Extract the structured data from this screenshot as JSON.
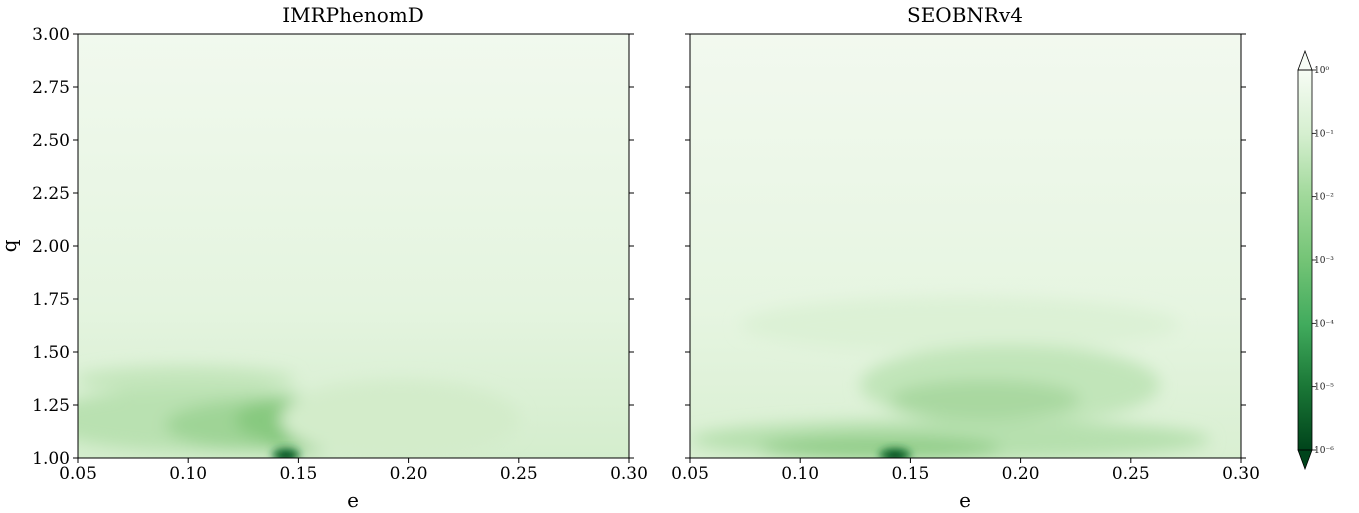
{
  "chart_data": [
    {
      "type": "heatmap",
      "title": "IMRPhenomD",
      "xlabel": "e",
      "ylabel": "q",
      "xlim": [
        0.05,
        0.3
      ],
      "ylim": [
        1.0,
        3.0
      ],
      "x_ticks": [
        "0.05",
        "0.10",
        "0.15",
        "0.20",
        "0.25",
        "0.30"
      ],
      "y_ticks": [
        "1.00",
        "1.25",
        "1.50",
        "1.75",
        "2.00",
        "2.25",
        "2.50",
        "2.75",
        "3.00"
      ],
      "colormap": "Greens_r",
      "color_scale": "log",
      "features": [
        {
          "e": 0.143,
          "q": 1.01,
          "log10_value": -5.8
        },
        {
          "e": 0.15,
          "q": 1.12,
          "log10_value": -3.6
        },
        {
          "e": 0.11,
          "q": 1.14,
          "log10_value": -3.3
        },
        {
          "e": 0.12,
          "q": 1.34,
          "log10_value": -2.7
        }
      ]
    },
    {
      "type": "heatmap",
      "title": "SEOBNRv4",
      "xlabel": "e",
      "ylabel": "",
      "xlim": [
        0.05,
        0.3
      ],
      "ylim": [
        1.0,
        3.0
      ],
      "x_ticks": [
        "0.05",
        "0.10",
        "0.15",
        "0.20",
        "0.25",
        "0.30"
      ],
      "colormap": "Greens_r",
      "color_scale": "log",
      "features": [
        {
          "e": 0.143,
          "q": 1.01,
          "log10_value": -5.8
        },
        {
          "e": 0.12,
          "q": 1.04,
          "log10_value": -3.6
        },
        {
          "e": 0.175,
          "q": 1.22,
          "log10_value": -3.0
        },
        {
          "e": 0.19,
          "q": 1.38,
          "log10_value": -2.5
        }
      ]
    }
  ],
  "colorbar": {
    "scale": "log",
    "extend": "both",
    "ticks": [
      "10⁰",
      "10⁻¹",
      "10⁻²",
      "10⁻³",
      "10⁻⁴",
      "10⁻⁵",
      "10⁻⁶"
    ],
    "colors": {
      "max": "#f7fcf5",
      "mid": "#74c476",
      "min": "#00441b"
    }
  }
}
